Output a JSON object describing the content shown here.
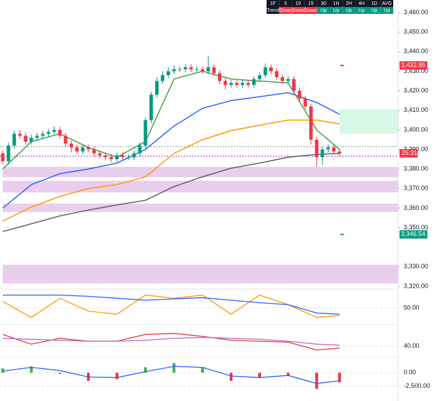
{
  "chart_data": {
    "type": "candlestick",
    "open": [
      3388,
      3384,
      3392,
      3398,
      3397,
      3394,
      3396,
      3397,
      3398,
      3399,
      3400,
      3397,
      3393,
      3391,
      3389,
      3391,
      3390,
      3388,
      3387,
      3386,
      3385,
      3387,
      3386,
      3386,
      3388,
      3392,
      3405,
      3418,
      3425,
      3428,
      3430,
      3431,
      3431,
      3432,
      3431,
      3431,
      3430,
      3432,
      3429,
      3425,
      3423,
      3424,
      3423,
      3424,
      3423,
      3426,
      3428,
      3432,
      3430,
      3427,
      3425,
      3426,
      3420,
      3416,
      3412,
      3395,
      3386,
      3390,
      3391,
      3389
    ],
    "high": [
      3389.5,
      3393.5,
      3399.5,
      3400,
      3398.5,
      3397.5,
      3398.5,
      3399.5,
      3400.5,
      3402,
      3401.5,
      3398.5,
      3394.5,
      3392.5,
      3392.5,
      3392.5,
      3391.5,
      3389.5,
      3388.5,
      3387.5,
      3388.5,
      3388.5,
      3387.5,
      3389.5,
      3393.5,
      3406.5,
      3419.5,
      3427,
      3430,
      3432,
      3433,
      3432.5,
      3433.5,
      3433.5,
      3432.5,
      3432.5,
      3438,
      3433.5,
      3430.5,
      3426.5,
      3425.5,
      3425.5,
      3425.5,
      3425.5,
      3427.5,
      3429.5,
      3434,
      3433.5,
      3431.5,
      3428.5,
      3427.5,
      3427.5,
      3421.5,
      3417.5,
      3413.5,
      3396.5,
      3391.5,
      3392.5,
      3392.5,
      3390.5
    ],
    "low": [
      3382.5,
      3382.5,
      3390.5,
      3395.5,
      3392.5,
      3392.5,
      3394.5,
      3395.5,
      3396.5,
      3397.5,
      3395.5,
      3391.5,
      3388.5,
      3387.5,
      3387.5,
      3388.5,
      3386.5,
      3385.5,
      3384.5,
      3383.5,
      3383.5,
      3384.5,
      3384.5,
      3384.5,
      3386.5,
      3390.5,
      3403.5,
      3416.5,
      3423.5,
      3426.5,
      3428.5,
      3429.5,
      3429.5,
      3429.5,
      3429.5,
      3428.5,
      3428.5,
      3427.5,
      3423.5,
      3420.5,
      3421.5,
      3421.5,
      3421.5,
      3421.5,
      3421.5,
      3424.5,
      3426.5,
      3428.5,
      3425.5,
      3423.5,
      3423.5,
      3418.5,
      3414.5,
      3410.5,
      3392.5,
      3381,
      3382,
      3388.5,
      3387.5,
      3386.5
    ],
    "close": [
      3384,
      3392,
      3398,
      3397,
      3394,
      3396,
      3397,
      3398,
      3399,
      3400,
      3397,
      3393,
      3391,
      3389,
      3391,
      3390,
      3388,
      3387,
      3386,
      3385,
      3387,
      3386,
      3386,
      3388,
      3392,
      3405,
      3418,
      3425,
      3428,
      3430,
      3431,
      3431,
      3432,
      3431,
      3431,
      3430,
      3432,
      3429,
      3425,
      3423,
      3424,
      3423,
      3424,
      3423,
      3426,
      3428,
      3432,
      3430,
      3427,
      3425,
      3426,
      3420,
      3416,
      3412,
      3395,
      3386,
      3390,
      3391,
      3389,
      3388
    ],
    "up_color": "#089981",
    "down_color": "#f23645",
    "ylim": [
      3320,
      3465
    ],
    "yticks": [
      {
        "value": 3320,
        "label": "3,320.00"
      },
      {
        "value": 3330,
        "label": "3,330.00"
      },
      {
        "value": 3350,
        "label": "3,350.00"
      },
      {
        "value": 3360,
        "label": "3,360.00"
      },
      {
        "value": 3370,
        "label": "3,370.00"
      },
      {
        "value": 3380,
        "label": "3,380.00"
      },
      {
        "value": 3390,
        "label": "3,390.00"
      },
      {
        "value": 3400,
        "label": "3,400.00"
      },
      {
        "value": 3410,
        "label": "3,410.00"
      },
      {
        "value": 3420,
        "label": "3,420.00"
      },
      {
        "value": 3430,
        "label": "3,430.00"
      },
      {
        "value": 3440,
        "label": "3,440.00"
      },
      {
        "value": 3450,
        "label": "3,450.00"
      },
      {
        "value": 3460,
        "label": "3,460.00"
      }
    ],
    "line_x": [
      0,
      5,
      10,
      15,
      20,
      25,
      30,
      35,
      40,
      45,
      50,
      55,
      59
    ],
    "lines": [
      {
        "color": "#2962ff",
        "values": [
          3360,
          3372,
          3377.6,
          3380,
          3383,
          3390,
          3402,
          3411,
          3415,
          3417,
          3419,
          3414,
          3408
        ]
      },
      {
        "color": "#ff9800",
        "values": [
          3353.4,
          3360.5,
          3366,
          3370,
          3372,
          3376,
          3388,
          3395,
          3399.6,
          3402.4,
          3405,
          3405,
          3403
        ]
      },
      {
        "color": "#5d5d66",
        "values": [
          3348,
          3352,
          3356,
          3359,
          3361.6,
          3364,
          3371,
          3376,
          3380.4,
          3383,
          3386,
          3387.5,
          3388
        ]
      },
      {
        "color": "#43a047",
        "values": [
          3380,
          3394,
          3398,
          3391,
          3386,
          3394,
          3426,
          3430,
          3426,
          3425,
          3424,
          3400,
          3390
        ]
      }
    ],
    "zones": [
      {
        "from": 3375.8,
        "to": 3381.1,
        "color": "#e1bee7",
        "start": 0
      },
      {
        "from": 3368,
        "to": 3374,
        "color": "#e1bee7",
        "start": 0
      },
      {
        "from": 3358,
        "to": 3362.3,
        "color": "#e1bee7",
        "start": 0
      },
      {
        "from": 3321.4,
        "to": 3331,
        "color": "#e1bee7",
        "start": 0
      },
      {
        "from": 3398,
        "to": 3410.5,
        "color": "#c8f5dc",
        "start": 59
      }
    ],
    "levels": [
      {
        "value": 3386.5,
        "color": "#9c27b0"
      },
      {
        "value": 3391.5,
        "color": "#888888"
      }
    ],
    "price_labels": [
      {
        "value": 3432.95,
        "label": "3,432.95",
        "color": "#f23645"
      },
      {
        "value": 3346.54,
        "label": "3,346.54",
        "color": "#089981"
      }
    ],
    "countdown": "25:31",
    "panels": [
      {
        "ylim": [
          25,
          75
        ],
        "yticks": [
          {
            "value": 50,
            "label": "50.00"
          }
        ],
        "lines": [
          {
            "color": "#ff9800",
            "values": [
              60,
              35,
              65,
              45,
              40,
              70,
              65,
              70,
              40,
              70,
              55,
              35,
              38
            ]
          },
          {
            "color": "#2962ff",
            "values": [
              70,
              70,
              70,
              68,
              65,
              62,
              64,
              66,
              62,
              58,
              55,
              42,
              40
            ]
          }
        ]
      },
      {
        "ylim": [
          30,
          60
        ],
        "yticks": [
          {
            "value": 40,
            "label": "40.00"
          }
        ],
        "lines": [
          {
            "color": "#e53935",
            "values": [
              52,
              42,
              48,
              45,
              45,
              52,
              53,
              50,
              46,
              45,
              44,
              36,
              38
            ]
          },
          {
            "color": "#ba68c8",
            "values": [
              48,
              47,
              46,
              45,
              45,
              46,
              48,
              49,
              48,
              47,
              45,
              42,
              41
            ]
          }
        ]
      },
      {
        "ylim": [
          -5000,
          2500
        ],
        "yticks": [
          {
            "value": 0,
            "label": "0.00"
          },
          {
            "value": -2500,
            "label": "-2,500.00"
          }
        ],
        "histogram": [
          800,
          1200,
          -200,
          -1500,
          -1200,
          1000,
          1800,
          900,
          -1500,
          -800,
          -600,
          -3000,
          -1800
        ],
        "lines": [
          {
            "color": "#2962ff",
            "values": [
              300,
              1000,
              400,
              -800,
              -900,
              200,
              1200,
              1000,
              -600,
              -900,
              -500,
              -2000,
              -1500
            ]
          }
        ]
      }
    ],
    "trend_table": {
      "header": [
        "1F",
        "5",
        "10",
        "15",
        "30",
        "1H",
        "2H",
        "4H",
        "1D",
        "AVG"
      ],
      "row": [
        "Trend",
        "Down",
        "Down",
        "Down",
        "Up",
        "Up",
        "Up",
        "Up",
        "Up",
        "Up"
      ]
    }
  }
}
